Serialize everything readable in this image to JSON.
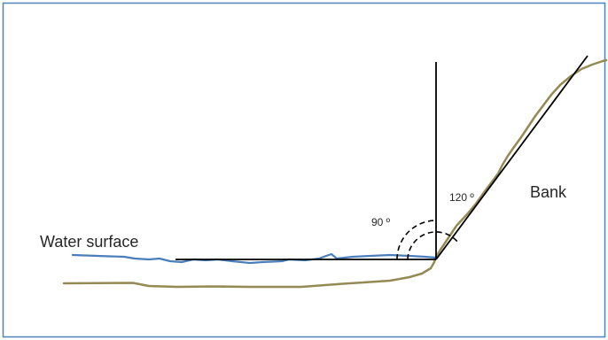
{
  "labels": {
    "water_surface": "Water surface",
    "bank": "Bank",
    "angle_90": "90 º",
    "angle_120": "120 º"
  },
  "colors": {
    "frame": "#4f81bd",
    "water": "#4a7ebb",
    "ground": "#948a54",
    "lines": "#000000",
    "text": "#262626"
  }
}
